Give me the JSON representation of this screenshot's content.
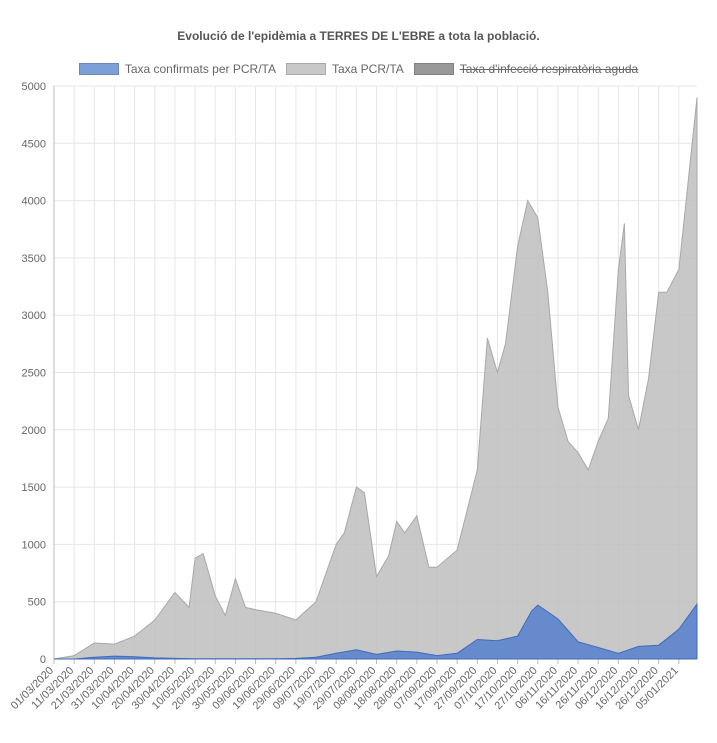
{
  "chart_data": {
    "type": "area",
    "title": "Evolució de l'epidèmia a TERRES DE L'EBRE a tota la població.",
    "xlabel": "",
    "ylabel": "",
    "ylim": [
      0,
      5000
    ],
    "y_ticks": [
      "0",
      "500",
      "1000",
      "1500",
      "2000",
      "2500",
      "3000",
      "3500",
      "4000",
      "4500",
      "5000"
    ],
    "x_tick_labels": [
      "01/03/2020",
      "11/03/2020",
      "21/03/2020",
      "31/03/2020",
      "10/04/2020",
      "20/04/2020",
      "30/04/2020",
      "10/05/2020",
      "20/05/2020",
      "30/05/2020",
      "09/06/2020",
      "19/06/2020",
      "29/06/2020",
      "09/07/2020",
      "19/07/2020",
      "29/07/2020",
      "08/08/2020",
      "18/08/2020",
      "28/08/2020",
      "07/09/2020",
      "17/09/2020",
      "27/09/2020",
      "07/10/2020",
      "17/10/2020",
      "27/10/2020",
      "06/11/2020",
      "16/11/2020",
      "26/11/2020",
      "06/12/2020",
      "16/12/2020",
      "26/12/2020",
      "05/01/2021"
    ],
    "x_start": "01/03/2020",
    "x_end": "14/01/2021",
    "grid": true,
    "legend_position": "top",
    "series": [
      {
        "name": "Taxa confirmats per PCR/TA",
        "color": "#5b83cc",
        "hidden": false,
        "points": [
          [
            "01/03/2020",
            0
          ],
          [
            "11/03/2020",
            0
          ],
          [
            "21/03/2020",
            15
          ],
          [
            "31/03/2020",
            25
          ],
          [
            "10/04/2020",
            20
          ],
          [
            "20/04/2020",
            10
          ],
          [
            "30/04/2020",
            5
          ],
          [
            "10/05/2020",
            3
          ],
          [
            "20/05/2020",
            3
          ],
          [
            "30/05/2020",
            2
          ],
          [
            "09/06/2020",
            2
          ],
          [
            "19/06/2020",
            2
          ],
          [
            "29/06/2020",
            5
          ],
          [
            "09/07/2020",
            15
          ],
          [
            "19/07/2020",
            50
          ],
          [
            "29/07/2020",
            80
          ],
          [
            "08/08/2020",
            40
          ],
          [
            "18/08/2020",
            70
          ],
          [
            "28/08/2020",
            60
          ],
          [
            "07/09/2020",
            30
          ],
          [
            "17/09/2020",
            50
          ],
          [
            "27/09/2020",
            170
          ],
          [
            "07/10/2020",
            160
          ],
          [
            "17/10/2020",
            200
          ],
          [
            "24/10/2020",
            420
          ],
          [
            "27/10/2020",
            470
          ],
          [
            "06/11/2020",
            350
          ],
          [
            "16/11/2020",
            150
          ],
          [
            "26/11/2020",
            100
          ],
          [
            "06/12/2020",
            50
          ],
          [
            "16/12/2020",
            110
          ],
          [
            "26/12/2020",
            120
          ],
          [
            "05/01/2021",
            260
          ],
          [
            "14/01/2021",
            480
          ]
        ]
      },
      {
        "name": "Taxa PCR/TA",
        "color": "#c8c8c8",
        "hidden": false,
        "points": [
          [
            "01/03/2020",
            0
          ],
          [
            "11/03/2020",
            30
          ],
          [
            "21/03/2020",
            140
          ],
          [
            "31/03/2020",
            130
          ],
          [
            "10/04/2020",
            200
          ],
          [
            "20/04/2020",
            340
          ],
          [
            "30/04/2020",
            580
          ],
          [
            "07/05/2020",
            450
          ],
          [
            "10/05/2020",
            880
          ],
          [
            "14/05/2020",
            920
          ],
          [
            "20/05/2020",
            550
          ],
          [
            "25/05/2020",
            380
          ],
          [
            "30/05/2020",
            700
          ],
          [
            "04/06/2020",
            450
          ],
          [
            "09/06/2020",
            430
          ],
          [
            "19/06/2020",
            400
          ],
          [
            "29/06/2020",
            340
          ],
          [
            "09/07/2020",
            500
          ],
          [
            "19/07/2020",
            1000
          ],
          [
            "23/07/2020",
            1100
          ],
          [
            "29/07/2020",
            1500
          ],
          [
            "02/08/2020",
            1450
          ],
          [
            "08/08/2020",
            720
          ],
          [
            "14/08/2020",
            900
          ],
          [
            "18/08/2020",
            1200
          ],
          [
            "22/08/2020",
            1100
          ],
          [
            "28/08/2020",
            1250
          ],
          [
            "03/09/2020",
            800
          ],
          [
            "07/09/2020",
            800
          ],
          [
            "17/09/2020",
            950
          ],
          [
            "22/09/2020",
            1300
          ],
          [
            "27/09/2020",
            1650
          ],
          [
            "02/10/2020",
            2800
          ],
          [
            "07/10/2020",
            2500
          ],
          [
            "11/10/2020",
            2750
          ],
          [
            "17/10/2020",
            3600
          ],
          [
            "22/10/2020",
            4000
          ],
          [
            "27/10/2020",
            3850
          ],
          [
            "01/11/2020",
            3200
          ],
          [
            "06/11/2020",
            2200
          ],
          [
            "11/11/2020",
            1900
          ],
          [
            "16/11/2020",
            1800
          ],
          [
            "21/11/2020",
            1650
          ],
          [
            "26/11/2020",
            1900
          ],
          [
            "01/12/2020",
            2100
          ],
          [
            "06/12/2020",
            3400
          ],
          [
            "09/12/2020",
            3800
          ],
          [
            "11/12/2020",
            2300
          ],
          [
            "16/12/2020",
            2000
          ],
          [
            "21/12/2020",
            2450
          ],
          [
            "26/12/2020",
            3200
          ],
          [
            "30/12/2020",
            3200
          ],
          [
            "05/01/2021",
            3400
          ],
          [
            "14/01/2021",
            4900
          ]
        ]
      },
      {
        "name": "Taxa d'infecció respiratòria aguda",
        "color": "#999999",
        "hidden": true,
        "points": []
      }
    ]
  }
}
